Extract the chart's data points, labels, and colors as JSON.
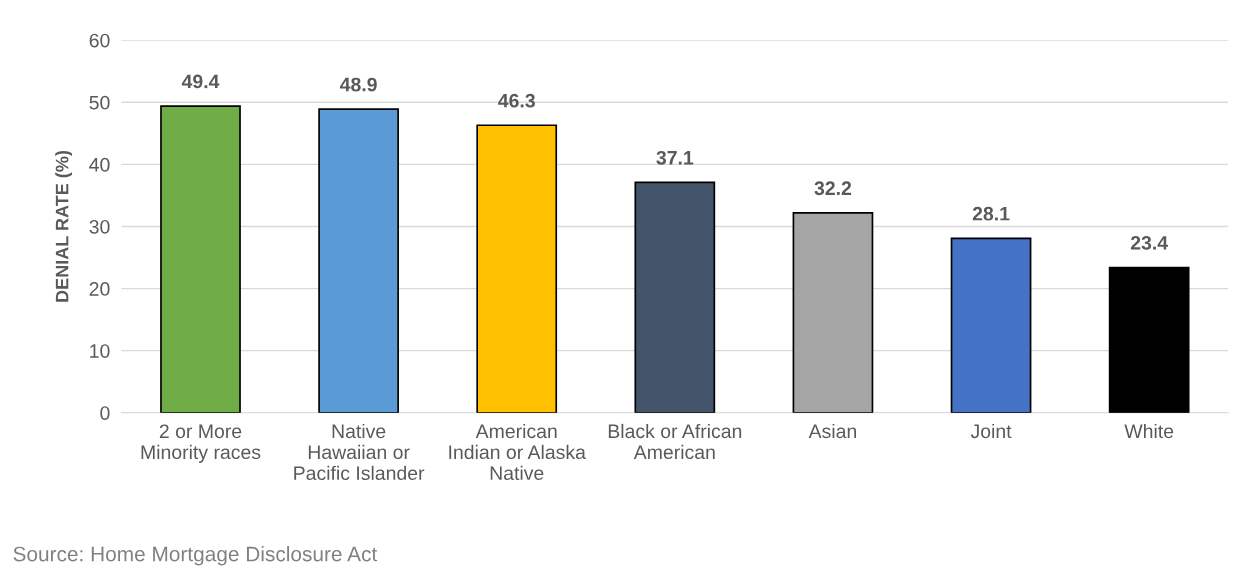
{
  "chart_data": {
    "type": "bar",
    "ylabel": "DENIAL RATE (%)",
    "categories": [
      "2 or More\nMinority races",
      "Native\nHawaiian or\nPacific Islander",
      "American\nIndian or Alaska\nNative",
      "Black or African\nAmerican",
      "Asian",
      "Joint",
      "White"
    ],
    "values": [
      49.4,
      48.9,
      46.3,
      37.1,
      32.2,
      28.1,
      23.4
    ],
    "colors": [
      "#70ad47",
      "#5b9bd5",
      "#ffc000",
      "#44546a",
      "#a5a5a5",
      "#4472c4",
      "#000000"
    ],
    "ylim": [
      0,
      60
    ],
    "yticks": [
      0,
      10,
      20,
      30,
      40,
      50,
      60
    ],
    "grid": "y",
    "data_labels": true,
    "annotations": [
      "Source: Home Mortgage Disclosure Act"
    ]
  }
}
